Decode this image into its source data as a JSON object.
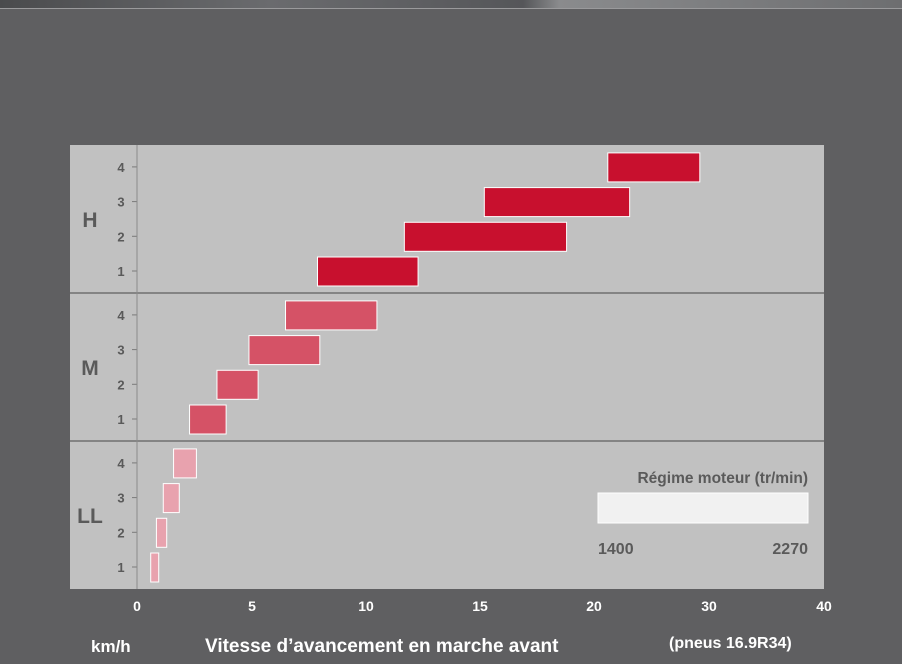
{
  "chart_data": {
    "type": "bar",
    "orientation": "horizontal",
    "groups": [
      {
        "name": "H",
        "color": "#c8102e",
        "gears": [
          {
            "gear": "1",
            "start": 7.9,
            "end": 12.3
          },
          {
            "gear": "2",
            "start": 11.7,
            "end": 18.8
          },
          {
            "gear": "3",
            "start": 15.2,
            "end": 23.1
          },
          {
            "gear": "4",
            "start": 21.2,
            "end": 29.2
          }
        ]
      },
      {
        "name": "M",
        "color": "#d55266",
        "gears": [
          {
            "gear": "1",
            "start": 2.3,
            "end": 3.9
          },
          {
            "gear": "2",
            "start": 3.5,
            "end": 5.3
          },
          {
            "gear": "3",
            "start": 4.9,
            "end": 8.0
          },
          {
            "gear": "4",
            "start": 6.5,
            "end": 10.5
          }
        ]
      },
      {
        "name": "LL",
        "color": "#e8a2ae",
        "gears": [
          {
            "gear": "1",
            "start": 0.6,
            "end": 0.95
          },
          {
            "gear": "2",
            "start": 0.85,
            "end": 1.3
          },
          {
            "gear": "3",
            "start": 1.15,
            "end": 1.85
          },
          {
            "gear": "4",
            "start": 1.6,
            "end": 2.6
          }
        ]
      }
    ],
    "x_tick_labels": [
      "0",
      "5",
      "10",
      "15",
      "20",
      "30",
      "40"
    ],
    "x_unit": "km/h",
    "x_label": "Vitesse d’avancement en marche avant",
    "x_note": "(pneus 16.9R34)",
    "legend": {
      "title": "Régime moteur (tr/min)",
      "min_label": "1400",
      "max_label": "2270",
      "placement": "bottom-right"
    }
  }
}
